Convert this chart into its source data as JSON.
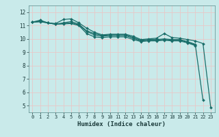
{
  "title": "",
  "xlabel": "Humidex (Indice chaleur)",
  "xlim": [
    -0.5,
    23.5
  ],
  "ylim": [
    4.5,
    12.5
  ],
  "xticks": [
    0,
    1,
    2,
    3,
    4,
    5,
    6,
    7,
    8,
    9,
    10,
    11,
    12,
    13,
    14,
    15,
    16,
    17,
    18,
    19,
    20,
    21,
    22,
    23
  ],
  "yticks": [
    5,
    6,
    7,
    8,
    9,
    10,
    11,
    12
  ],
  "bg_color": "#c9eaea",
  "grid_color": "#e8c8c8",
  "line_color": "#1a6e6a",
  "lines": [
    [
      11.25,
      11.4,
      11.2,
      11.15,
      11.45,
      11.5,
      11.2,
      10.8,
      10.5,
      10.3,
      10.35,
      10.35,
      10.35,
      10.2,
      9.95,
      10.0,
      10.05,
      10.4,
      10.1,
      10.05,
      9.95,
      9.85,
      9.65,
      4.85
    ],
    [
      11.25,
      11.35,
      11.2,
      11.1,
      11.2,
      11.3,
      11.1,
      10.6,
      10.4,
      10.25,
      10.3,
      10.3,
      10.3,
      10.1,
      9.9,
      9.95,
      9.95,
      10.0,
      9.95,
      9.95,
      9.8,
      9.6,
      5.4,
      null
    ],
    [
      11.25,
      11.3,
      11.2,
      11.1,
      11.15,
      11.2,
      11.05,
      10.55,
      10.3,
      10.2,
      10.25,
      10.25,
      10.25,
      10.05,
      9.85,
      9.9,
      9.9,
      9.95,
      9.9,
      9.9,
      9.75,
      9.55,
      null,
      null
    ],
    [
      11.25,
      11.28,
      11.2,
      11.1,
      11.12,
      11.15,
      11.0,
      10.4,
      10.15,
      10.1,
      10.15,
      10.15,
      10.15,
      9.95,
      9.8,
      9.85,
      9.85,
      9.9,
      9.85,
      9.85,
      9.7,
      9.5,
      null,
      null
    ]
  ],
  "marker": "D",
  "markersize": 2.0,
  "linewidth": 0.9
}
